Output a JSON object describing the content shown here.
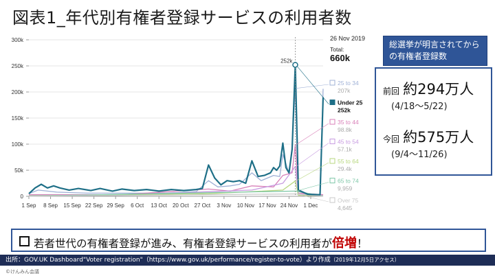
{
  "title": "図表1_年代別有権者登録サービスの利用者数",
  "callout": "総選挙が明言されてから の有権者登録数",
  "total_box": {
    "date": "26 Nov 2019",
    "label": "Total:",
    "value": "660k"
  },
  "comparison": {
    "previous": {
      "label": "前回",
      "value": "約294万人",
      "dates": "(4/18〜5/22)"
    },
    "current": {
      "label": "今回",
      "value": "約575万人",
      "dates": "(9/4〜11/26)"
    }
  },
  "conclusion": {
    "before": "若者世代の有権者登録が進み、有権者登録サービスの利用者が",
    "highlight": "倍増",
    "after": "！"
  },
  "source": {
    "main": "出所：GOV.UK Dashboard\"Voter registration\"（https://www.gov.uk/performance/register-to-vote）より作成",
    "note": "（2019年12月5日アクセス）"
  },
  "copyright": "©けんみん会議",
  "chart_data": {
    "type": "line",
    "x_tick_labels": [
      "1 Sep",
      "8 Sep",
      "15 Sep",
      "22 Sep",
      "29 Sep",
      "6 Oct",
      "13 Oct",
      "20 Oct",
      "27 Oct",
      "3 Nov",
      "10 Nov",
      "17 Nov",
      "24 Nov",
      "1 Dec"
    ],
    "x_range": [
      "2019-09-01",
      "2019-12-05"
    ],
    "y_tick_labels": [
      "0",
      "50k",
      "100k",
      "150k",
      "200k",
      "250k",
      "300k"
    ],
    "y_range": [
      0,
      300000
    ],
    "peak_annotation": {
      "x": "2019-11-26",
      "label": "252k"
    },
    "series": [
      {
        "name": "25 to 34",
        "legend_value": "207k",
        "color": "#9fb0d6",
        "points": [
          [
            "2019-09-01",
            5000
          ],
          [
            "2019-09-04",
            12000
          ],
          [
            "2019-09-10",
            8000
          ],
          [
            "2019-09-20",
            6000
          ],
          [
            "2019-10-01",
            6000
          ],
          [
            "2019-10-15",
            6000
          ],
          [
            "2019-10-25",
            9000
          ],
          [
            "2019-10-29",
            30000
          ],
          [
            "2019-11-01",
            18000
          ],
          [
            "2019-11-05",
            20000
          ],
          [
            "2019-11-08",
            23000
          ],
          [
            "2019-11-12",
            45000
          ],
          [
            "2019-11-15",
            30000
          ],
          [
            "2019-11-19",
            40000
          ],
          [
            "2019-11-21",
            38000
          ],
          [
            "2019-11-22",
            80000
          ],
          [
            "2019-11-24",
            45000
          ],
          [
            "2019-11-25",
            95000
          ],
          [
            "2019-11-26",
            207000
          ],
          [
            "2019-11-27",
            10000
          ],
          [
            "2019-11-30",
            3000
          ],
          [
            "2019-12-04",
            2000
          ],
          [
            "2019-12-05",
            206000
          ]
        ]
      },
      {
        "name": "Under 25",
        "legend_value": "252k",
        "color": "#1e6f87",
        "points": [
          [
            "2019-09-01",
            5000
          ],
          [
            "2019-09-03",
            16000
          ],
          [
            "2019-09-05",
            23000
          ],
          [
            "2019-09-07",
            16000
          ],
          [
            "2019-09-09",
            20000
          ],
          [
            "2019-09-11",
            16000
          ],
          [
            "2019-09-14",
            12000
          ],
          [
            "2019-09-17",
            15000
          ],
          [
            "2019-09-21",
            11000
          ],
          [
            "2019-09-24",
            15000
          ],
          [
            "2019-09-28",
            10000
          ],
          [
            "2019-10-01",
            14000
          ],
          [
            "2019-10-05",
            11000
          ],
          [
            "2019-10-09",
            13000
          ],
          [
            "2019-10-13",
            10000
          ],
          [
            "2019-10-17",
            13000
          ],
          [
            "2019-10-21",
            11000
          ],
          [
            "2019-10-25",
            13000
          ],
          [
            "2019-10-27",
            15000
          ],
          [
            "2019-10-29",
            60000
          ],
          [
            "2019-10-31",
            35000
          ],
          [
            "2019-11-02",
            22000
          ],
          [
            "2019-11-04",
            30000
          ],
          [
            "2019-11-06",
            28000
          ],
          [
            "2019-11-08",
            30000
          ],
          [
            "2019-11-10",
            25000
          ],
          [
            "2019-11-12",
            68000
          ],
          [
            "2019-11-14",
            38000
          ],
          [
            "2019-11-16",
            40000
          ],
          [
            "2019-11-18",
            45000
          ],
          [
            "2019-11-19",
            55000
          ],
          [
            "2019-11-20",
            50000
          ],
          [
            "2019-11-21",
            58000
          ],
          [
            "2019-11-22",
            102000
          ],
          [
            "2019-11-23",
            55000
          ],
          [
            "2019-11-24",
            45000
          ],
          [
            "2019-11-25",
            90000
          ],
          [
            "2019-11-26",
            252000
          ],
          [
            "2019-11-27",
            12000
          ],
          [
            "2019-11-30",
            4000
          ],
          [
            "2019-12-04",
            3000
          ],
          [
            "2019-12-05",
            190000
          ]
        ]
      },
      {
        "name": "35 to 44",
        "legend_value": "98.8k",
        "color": "#d87fb8",
        "points": [
          [
            "2019-09-01",
            3000
          ],
          [
            "2019-10-01",
            3000
          ],
          [
            "2019-10-29",
            14000
          ],
          [
            "2019-11-05",
            10000
          ],
          [
            "2019-11-12",
            20000
          ],
          [
            "2019-11-19",
            18000
          ],
          [
            "2019-11-22",
            40000
          ],
          [
            "2019-11-25",
            45000
          ],
          [
            "2019-11-26",
            98800
          ],
          [
            "2019-11-27",
            6000
          ],
          [
            "2019-12-05",
            3000
          ]
        ]
      },
      {
        "name": "45 to 54",
        "legend_value": "57.1k",
        "color": "#c79be0",
        "points": [
          [
            "2019-09-01",
            2000
          ],
          [
            "2019-10-01",
            2000
          ],
          [
            "2019-10-29",
            9000
          ],
          [
            "2019-11-12",
            12000
          ],
          [
            "2019-11-22",
            25000
          ],
          [
            "2019-11-26",
            57100
          ],
          [
            "2019-11-27",
            4000
          ],
          [
            "2019-12-05",
            2000
          ]
        ]
      },
      {
        "name": "55 to 64",
        "legend_value": "29.4k",
        "color": "#b7d77f",
        "points": [
          [
            "2019-09-01",
            1000
          ],
          [
            "2019-10-29",
            5000
          ],
          [
            "2019-11-22",
            12000
          ],
          [
            "2019-11-26",
            29400
          ],
          [
            "2019-11-27",
            2000
          ],
          [
            "2019-12-05",
            1000
          ]
        ]
      },
      {
        "name": "65 to 74",
        "legend_value": "9,959",
        "color": "#7fc7a8",
        "points": [
          [
            "2019-09-01",
            500
          ],
          [
            "2019-11-26",
            9959
          ],
          [
            "2019-12-05",
            500
          ]
        ]
      },
      {
        "name": "Over 75",
        "legend_value": "4,645",
        "color": "#c8c8c8",
        "points": [
          [
            "2019-09-01",
            300
          ],
          [
            "2019-11-26",
            4645
          ],
          [
            "2019-12-05",
            300
          ]
        ]
      }
    ]
  }
}
